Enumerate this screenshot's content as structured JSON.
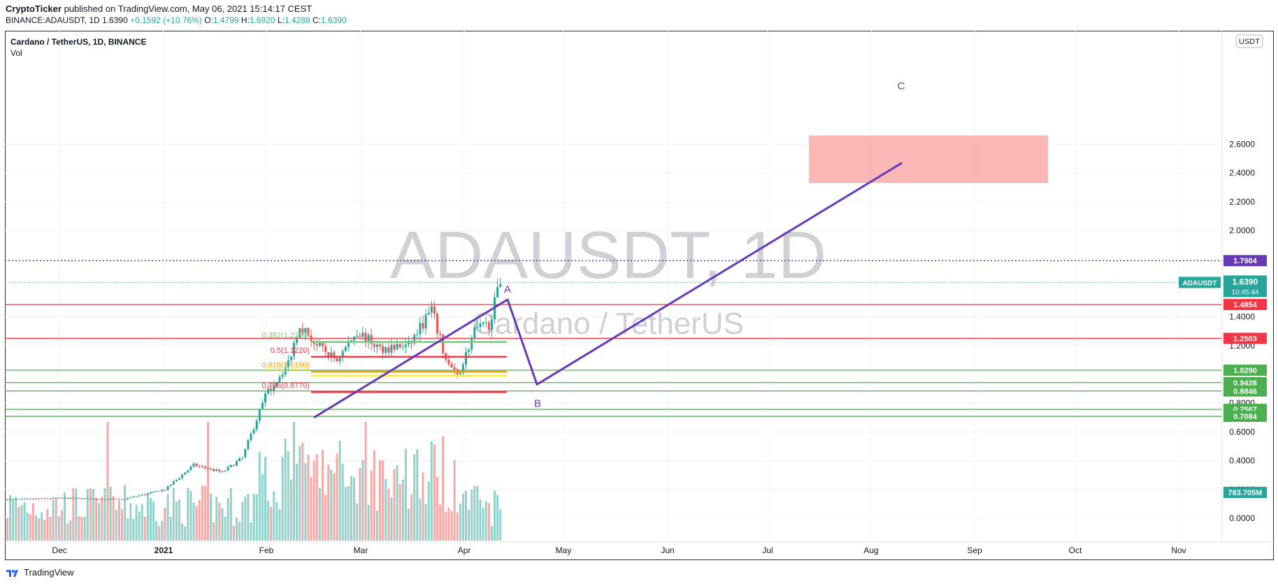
{
  "header": {
    "author": "CryptoTicker",
    "published": "published on TradingView.com, May 06, 2021 15:14:17 CEST",
    "symbol_line": "BINANCE:ADAUSDT, 1D",
    "last": "1.6390",
    "change": "+0.1592 (+10.76%)",
    "o_label": "O:",
    "o": "1.4799",
    "h_label": "H:",
    "h": "1.6920",
    "l_label": "L:",
    "l": "1.4288",
    "c_label": "C:",
    "c": "1.6390"
  },
  "legend": {
    "symbol": "Cardano / TetherUS, 1D, BINANCE",
    "vol": "Vol"
  },
  "watermark": {
    "line1": "ADAUSDT, 1D",
    "line2": "Cardano / TetherUS"
  },
  "footer": {
    "brand": "TradingView"
  },
  "chart_data": {
    "type": "candlestick",
    "currency_label": "USDT",
    "y_ticks": [
      "2.6000",
      "2.4000",
      "2.2000",
      "2.0000",
      "1.4000",
      "1.2000",
      "0.8000",
      "0.6000",
      "0.4000",
      "0.2000",
      "0.0000"
    ],
    "y_tick_values": [
      2.6,
      2.4,
      2.2,
      2.0,
      1.4,
      1.2,
      0.8,
      0.6,
      0.4,
      0.2,
      0.0
    ],
    "x_ticks": [
      "Dec",
      "2021",
      "Feb",
      "Mar",
      "Apr",
      "May",
      "Jun",
      "Jul",
      "Aug",
      "Sep",
      "Oct",
      "Nov"
    ],
    "price_labels": [
      {
        "value": 1.7904,
        "text": "1.7904",
        "color": "#673ab7",
        "style": "dotted"
      },
      {
        "value": 1.4854,
        "text": "1.4854",
        "color": "#f23645",
        "style": "solid"
      },
      {
        "value": 1.2503,
        "text": "1.2503",
        "color": "#f23645",
        "style": "solid"
      },
      {
        "value": 1.029,
        "text": "1.0290",
        "color": "#4caf50",
        "style": "solid"
      },
      {
        "value": 0.9428,
        "text": "0.9428",
        "color": "#4caf50",
        "style": "solid"
      },
      {
        "value": 0.8846,
        "text": "0.8846",
        "color": "#4caf50",
        "style": "solid"
      },
      {
        "value": 0.7567,
        "text": "0.7567",
        "color": "#4caf50",
        "style": "solid"
      },
      {
        "value": 0.7084,
        "text": "0.7084",
        "color": "#4caf50",
        "style": "solid"
      }
    ],
    "current_price": {
      "value": 1.639,
      "text": "1.6390",
      "countdown": "10:45:44",
      "symbol": "ADAUSDT",
      "color": "#26a69a"
    },
    "volume_label": {
      "text": "783.705M",
      "color": "#26a69a"
    },
    "fib_levels": [
      {
        "label": "0.382(1.2250)",
        "value": 1.225,
        "color": "#81c784"
      },
      {
        "label": "0.5(1.1220)",
        "value": 1.122,
        "color": "#f23645"
      },
      {
        "label": "0.618(1.0190)",
        "value": 1.019,
        "color": "#ff9800"
      },
      {
        "label": "0.65(0.9911)",
        "value": 0.9911,
        "color": "#ffeb3b"
      },
      {
        "label": "0.786(0.8770)",
        "value": 0.877,
        "color": "#f23645"
      }
    ],
    "wave_points": [
      {
        "label": "A",
        "price": 1.52
      },
      {
        "label": "B",
        "price": 0.93
      },
      {
        "label": "C",
        "price": 2.47
      }
    ],
    "target_zone": {
      "top": 2.66,
      "bottom": 2.33,
      "color": "#f8aaa8"
    },
    "colors": {
      "up": "#26a69a",
      "down": "#ef5350",
      "wave": "#673ab7"
    }
  }
}
